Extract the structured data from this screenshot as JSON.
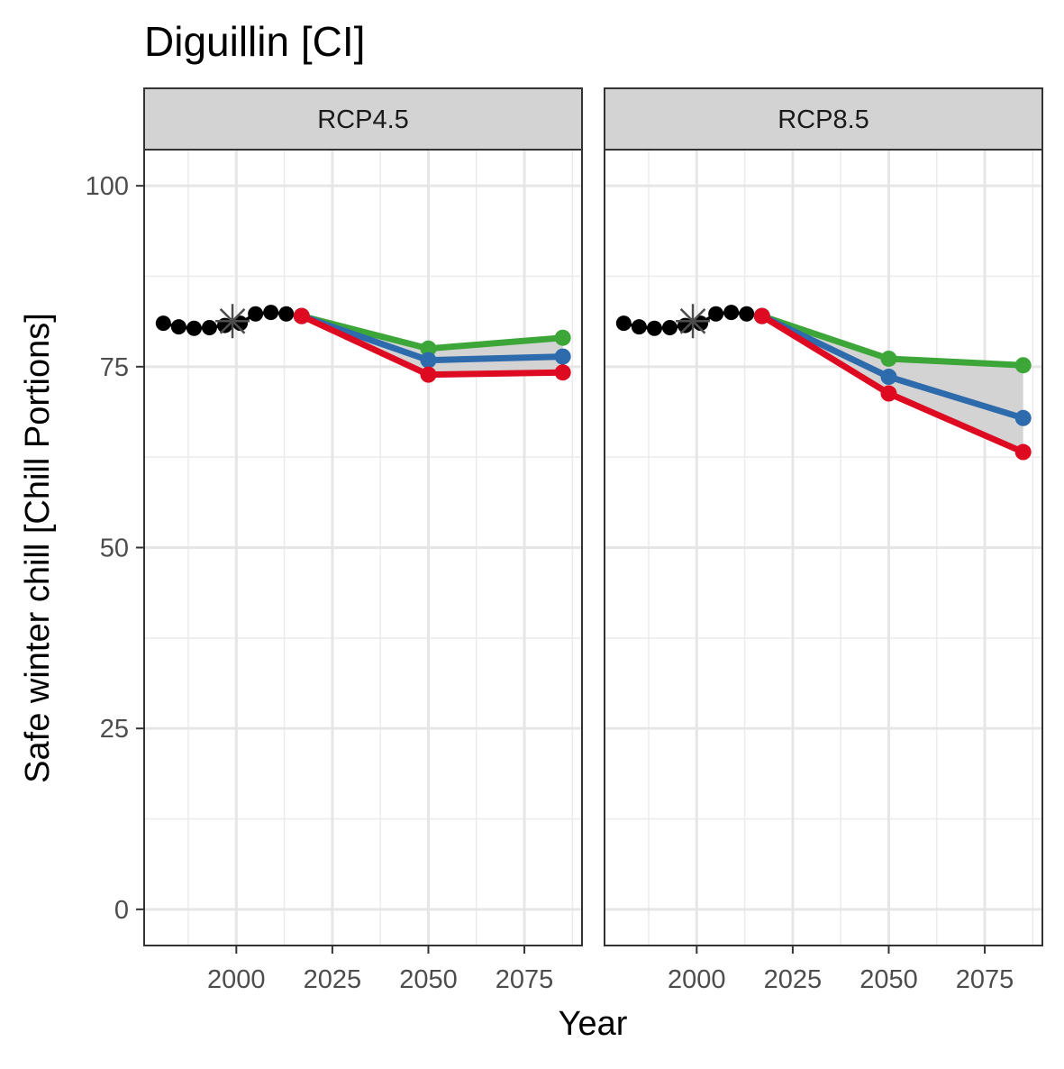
{
  "chart_data": {
    "type": "line",
    "title": "Diguillin [CI]",
    "xlabel": "Year",
    "ylabel": "Safe winter chill [Chill Portions]",
    "xlim": [
      1976,
      2090
    ],
    "ylim": [
      -5,
      105
    ],
    "xticks": [
      2000,
      2025,
      2050,
      2075
    ],
    "yticks": [
      0,
      25,
      50,
      75,
      100
    ],
    "grid": true,
    "legend": "none",
    "colors": {
      "historic": "#000000",
      "reference_marker": "#4d4d4d",
      "high": "#3da639",
      "median": "#2e6bac",
      "low": "#dd0a21",
      "ribbon": "#d3d3d3",
      "strip_fill": "#d3d3d3"
    },
    "panels": [
      {
        "strip": "RCP4.5",
        "historic": {
          "x": [
            1981,
            1985,
            1989,
            1993,
            1997,
            2001,
            2005,
            2009,
            2013
          ],
          "y": [
            81.0,
            80.5,
            80.3,
            80.4,
            80.7,
            81.0,
            82.3,
            82.5,
            82.3
          ]
        },
        "reference_point": {
          "x": 1999,
          "y": 81.3
        },
        "series": [
          {
            "key": "high",
            "x": [
              2017,
              2050,
              2085
            ],
            "y": [
              82.0,
              77.5,
              79.0
            ]
          },
          {
            "key": "median",
            "x": [
              2017,
              2050,
              2085
            ],
            "y": [
              82.0,
              75.9,
              76.4
            ]
          },
          {
            "key": "low",
            "x": [
              2017,
              2050,
              2085
            ],
            "y": [
              82.0,
              73.9,
              74.2
            ]
          }
        ]
      },
      {
        "strip": "RCP8.5",
        "historic": {
          "x": [
            1981,
            1985,
            1989,
            1993,
            1997,
            2001,
            2005,
            2009,
            2013
          ],
          "y": [
            81.0,
            80.5,
            80.3,
            80.4,
            80.7,
            81.0,
            82.3,
            82.5,
            82.3
          ]
        },
        "reference_point": {
          "x": 1999,
          "y": 81.3
        },
        "series": [
          {
            "key": "high",
            "x": [
              2017,
              2050,
              2085
            ],
            "y": [
              82.0,
              76.1,
              75.2
            ]
          },
          {
            "key": "median",
            "x": [
              2017,
              2050,
              2085
            ],
            "y": [
              82.0,
              73.6,
              67.9
            ]
          },
          {
            "key": "low",
            "x": [
              2017,
              2050,
              2085
            ],
            "y": [
              82.0,
              71.3,
              63.2
            ]
          }
        ]
      }
    ]
  }
}
